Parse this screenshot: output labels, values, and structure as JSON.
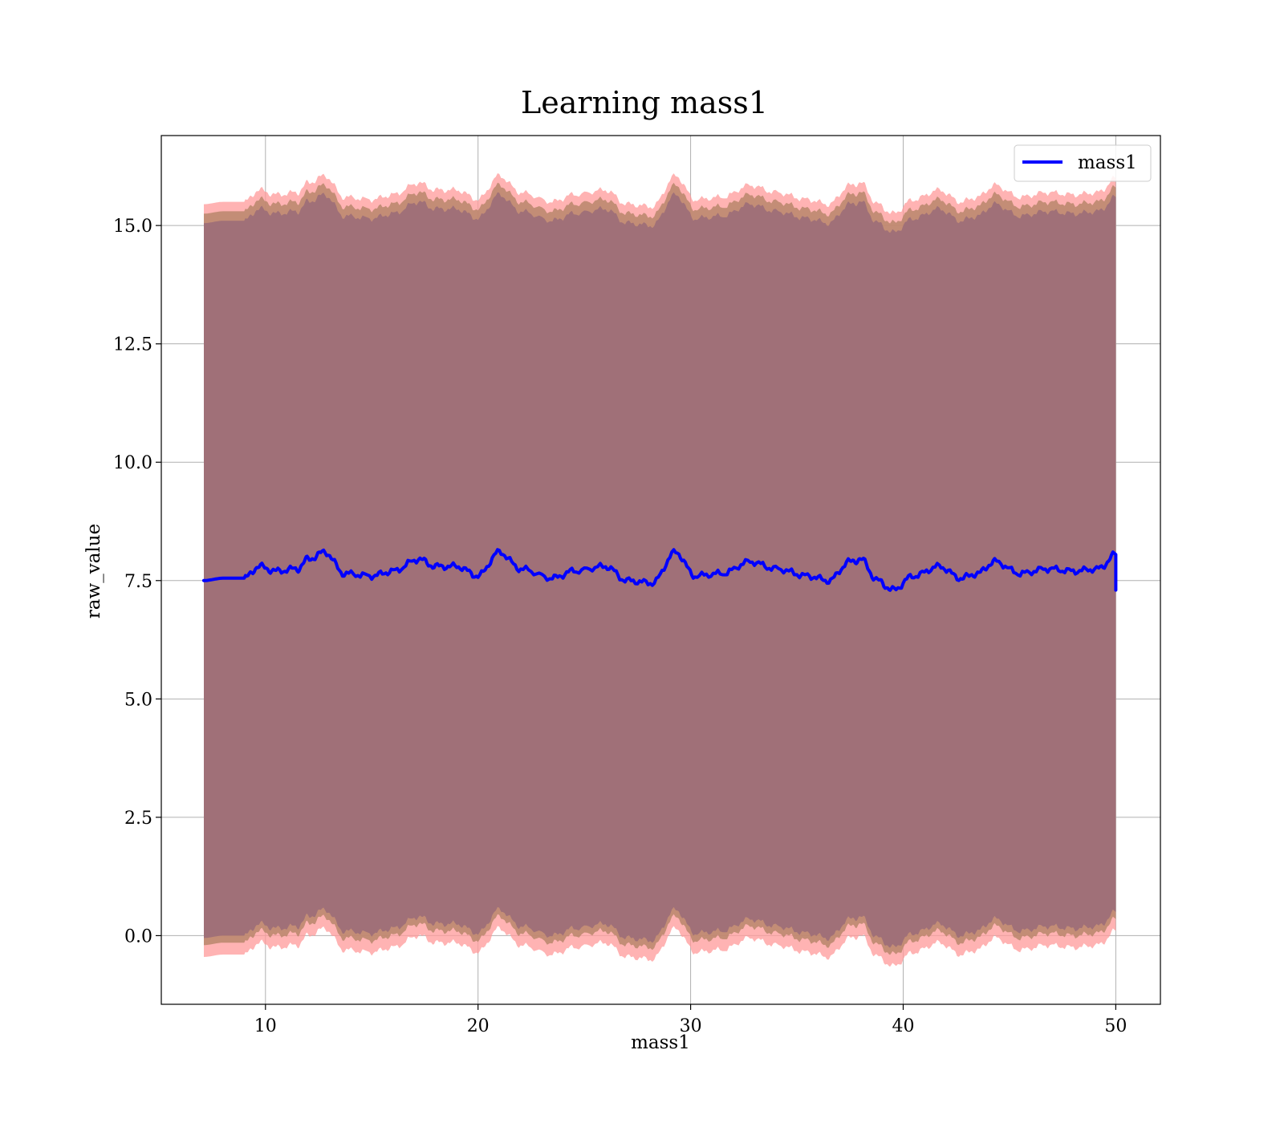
{
  "chart_data": {
    "type": "line",
    "title": "Learning mass1",
    "xlabel": "mass1",
    "ylabel": "raw_value",
    "xlim": [
      5.1,
      52.1
    ],
    "ylim": [
      -1.45,
      16.9
    ],
    "xticks": [
      10,
      20,
      30,
      40,
      50
    ],
    "xtick_labels": [
      "10",
      "20",
      "30",
      "40",
      "50"
    ],
    "yticks": [
      0.0,
      2.5,
      5.0,
      7.5,
      10.0,
      12.5,
      15.0
    ],
    "ytick_labels": [
      "0.0",
      "2.5",
      "5.0",
      "7.5",
      "10.0",
      "12.5",
      "15.0"
    ],
    "grid": true,
    "legend": {
      "position": "top-right",
      "entries": [
        "mass1"
      ]
    },
    "series": [
      {
        "name": "mass1",
        "color": "#0000ff",
        "x": [
          7.1,
          8.0,
          9.0,
          9.7,
          10.5,
          11.5,
          12.0,
          12.8,
          13.7,
          15.0,
          16.0,
          17.2,
          18.0,
          19.0,
          20.0,
          21.0,
          22.0,
          23.5,
          24.5,
          26.0,
          27.0,
          28.2,
          29.3,
          30.2,
          31.5,
          32.8,
          34.0,
          35.5,
          36.5,
          37.5,
          38.0,
          38.8,
          39.5,
          40.5,
          41.7,
          42.7,
          43.5,
          44.3,
          45.5,
          46.8,
          48.0,
          49.2,
          50.0
        ],
        "y": [
          7.5,
          7.55,
          7.55,
          7.8,
          7.7,
          7.75,
          7.95,
          8.1,
          7.65,
          7.6,
          7.7,
          7.95,
          7.8,
          7.8,
          7.6,
          8.1,
          7.75,
          7.55,
          7.7,
          7.8,
          7.5,
          7.45,
          8.1,
          7.6,
          7.65,
          7.9,
          7.75,
          7.6,
          7.5,
          7.9,
          7.95,
          7.5,
          7.3,
          7.6,
          7.8,
          7.55,
          7.65,
          7.9,
          7.65,
          7.75,
          7.7,
          7.75,
          8.05
        ]
      }
    ],
    "bands": [
      {
        "color": "#ff9999",
        "opacity": 0.75,
        "offset_upper": 7.95,
        "offset_lower": 7.95
      },
      {
        "color": "#b8866b",
        "opacity": 0.85,
        "offset_upper": 7.75,
        "offset_lower": 7.7
      },
      {
        "color": "#a07078",
        "opacity": 1.0,
        "offset_upper": 7.55,
        "offset_lower": 7.55
      }
    ]
  }
}
